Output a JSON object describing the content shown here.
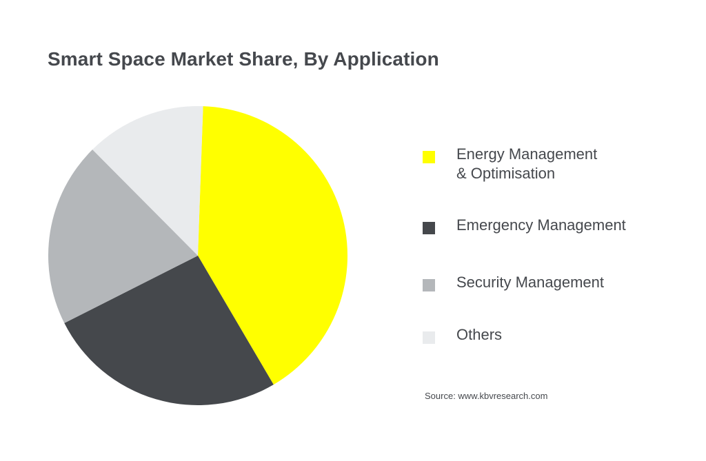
{
  "chart_data": {
    "type": "pie",
    "title": "Smart Space Market Share, By Application",
    "categories": [
      "Energy Management & Optimisation",
      "Emergency Management",
      "Security Management",
      "Others"
    ],
    "legend_labels": [
      "Energy Management\n& Optimisation",
      "Emergency Management",
      "Security Management",
      "Others"
    ],
    "values": [
      41,
      26,
      20,
      13
    ],
    "colors": [
      "#ffff00",
      "#45484c",
      "#b4b7ba",
      "#e9ebed"
    ],
    "legend_position": "right"
  },
  "source": "Source: www.kbvresearch.com"
}
